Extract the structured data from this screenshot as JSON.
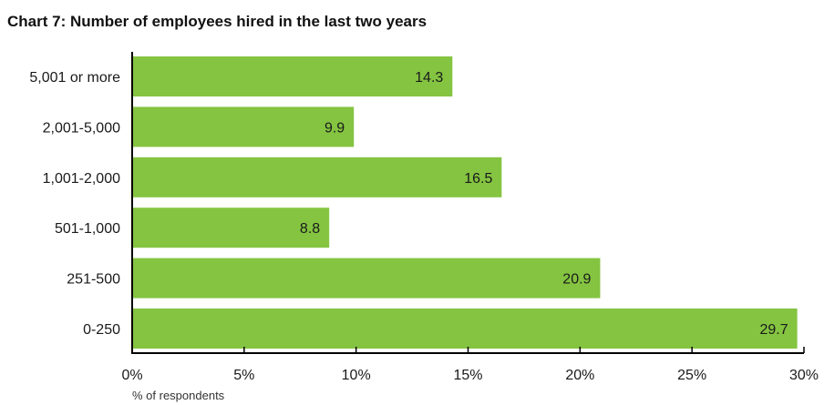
{
  "chart_data": {
    "type": "bar",
    "orientation": "horizontal",
    "title": "Chart 7: Number of employees hired in the last two years",
    "categories": [
      "5,001 or more",
      "2,001-5,000",
      "1,001-2,000",
      "501-1,000",
      "251-500",
      "0-250"
    ],
    "values": [
      14.3,
      9.9,
      16.5,
      8.8,
      20.9,
      29.7
    ],
    "value_labels": [
      "14.3",
      "9.9",
      "16.5",
      "8.8",
      "20.9",
      "29.7"
    ],
    "xlabel": "% of respondents",
    "ylabel": "",
    "xlim": [
      0,
      30
    ],
    "xticks": [
      0,
      5,
      10,
      15,
      20,
      25,
      30
    ],
    "xtick_labels": [
      "0%",
      "5%",
      "10%",
      "15%",
      "20%",
      "25%",
      "30%"
    ],
    "grid": false,
    "legend": "none",
    "bar_color": "#84c441"
  }
}
